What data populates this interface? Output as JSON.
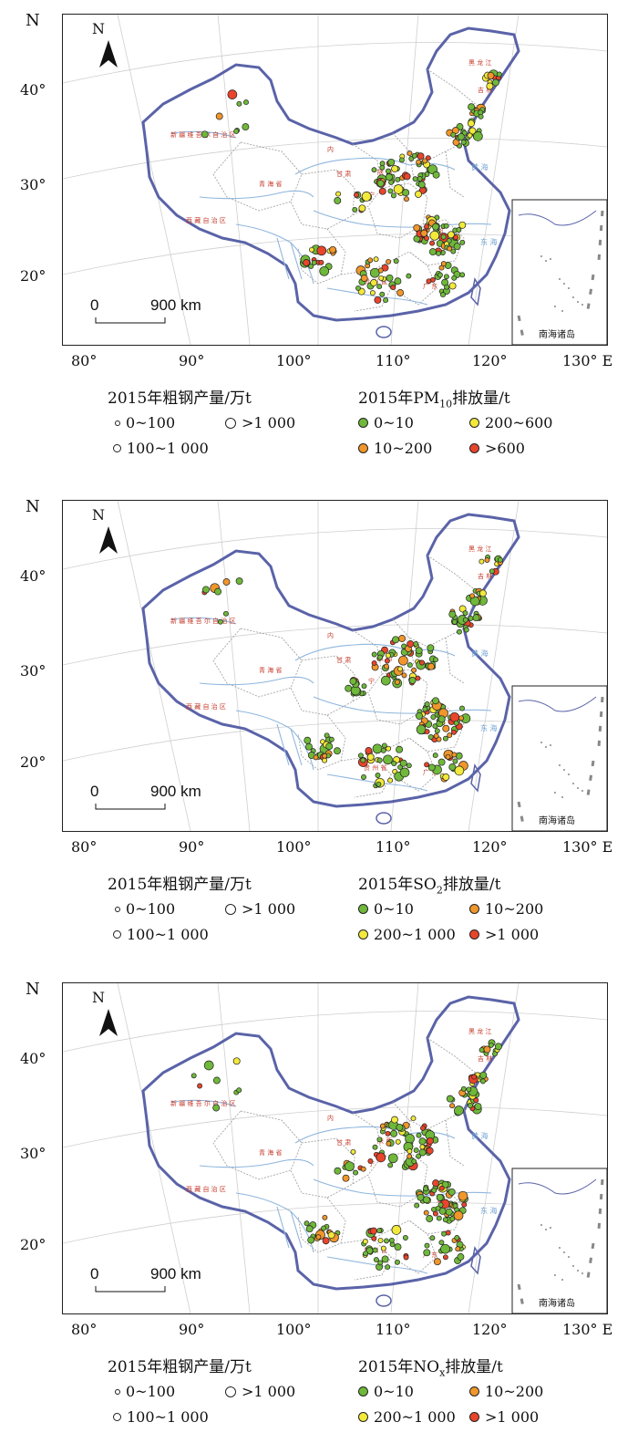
{
  "axis": {
    "north_letter": "N",
    "lat_labels": [
      "40°",
      "30°",
      "20°"
    ],
    "lon_labels": [
      "80°",
      "90°",
      "100°",
      "110°",
      "120°",
      "130° E"
    ]
  },
  "map": {
    "north_arrow_label": "N",
    "scale_zero": "0",
    "scale_label": "900 km",
    "inset_label": "南海诸岛",
    "colors": {
      "border_blue": "#5a63a8",
      "river_blue": "#8fb6dd",
      "province_line": "#9a9a9a",
      "class_green": "#6fb83a",
      "class_orange": "#f0962a",
      "class_yellow": "#f2e93a",
      "class_red": "#e8452c"
    }
  },
  "production_legend": {
    "title": "2015年粗钢产量/万t",
    "items": [
      "0~100",
      ">1 000",
      "100~1 000"
    ]
  },
  "panels": [
    {
      "emission_title_prefix": "2015年PM",
      "emission_title_sub": "10",
      "emission_title_suffix": "排放量/t",
      "classes": [
        {
          "label": "0~10",
          "color": "#6fb83a"
        },
        {
          "label": "200~600",
          "color": "#f2e93a"
        },
        {
          "label": "10~200",
          "color": "#f0962a"
        },
        {
          "label": ">600",
          "color": "#e8452c"
        }
      ]
    },
    {
      "emission_title_prefix": "2015年SO",
      "emission_title_sub": "2",
      "emission_title_suffix": "排放量/t",
      "classes": [
        {
          "label": "0~10",
          "color": "#6fb83a"
        },
        {
          "label": "10~200",
          "color": "#f0962a"
        },
        {
          "label": "200~1 000",
          "color": "#f2e93a"
        },
        {
          "label": ">1 000",
          "color": "#e8452c"
        }
      ]
    },
    {
      "emission_title_prefix": "2015年NO",
      "emission_title_sub": "x",
      "emission_title_suffix": "排放量/t",
      "classes": [
        {
          "label": "0~10",
          "color": "#6fb83a"
        },
        {
          "label": "10~200",
          "color": "#f0962a"
        },
        {
          "label": "200~1 000",
          "color": "#f2e93a"
        },
        {
          "label": ">1 000",
          "color": "#e8452c"
        }
      ]
    }
  ]
}
